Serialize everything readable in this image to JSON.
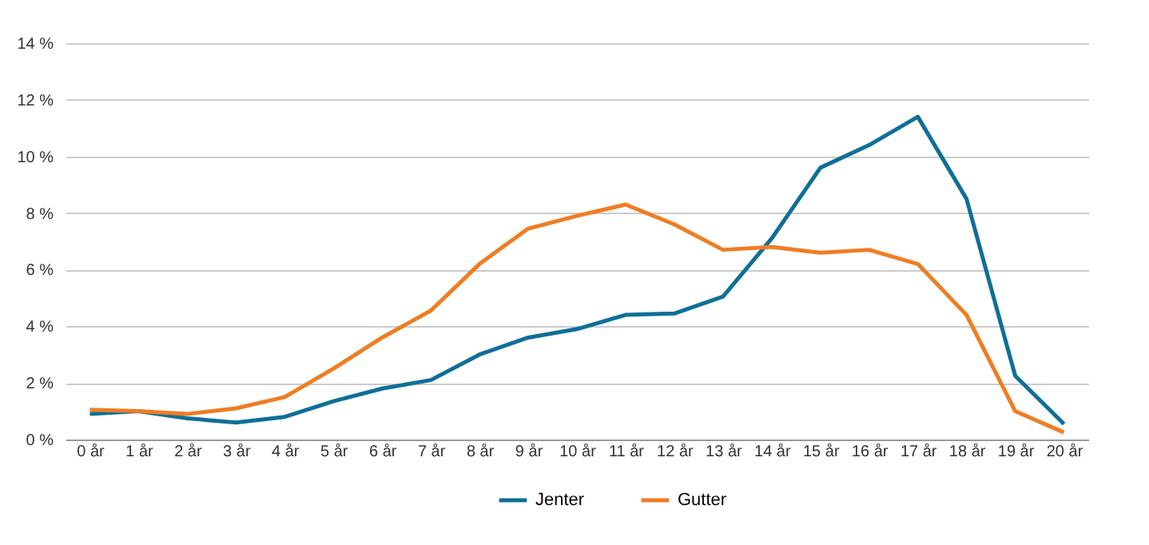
{
  "chart_data": {
    "type": "line",
    "categories": [
      "0 år",
      "1 år",
      "2 år",
      "3 år",
      "4 år",
      "5 år",
      "6 år",
      "7 år",
      "8 år",
      "9 år",
      "10 år",
      "11 år",
      "12 år",
      "13 år",
      "14 år",
      "15 år",
      "16 år",
      "17 år",
      "18 år",
      "19 år",
      "20 år"
    ],
    "series": [
      {
        "name": "Jenter",
        "color": "#0f6f98",
        "values": [
          0.9,
          1.0,
          0.75,
          0.6,
          0.8,
          1.35,
          1.8,
          2.1,
          3.0,
          3.6,
          3.9,
          4.4,
          4.45,
          5.05,
          7.1,
          9.6,
          10.4,
          11.4,
          8.5,
          2.25,
          0.55
        ]
      },
      {
        "name": "Gutter",
        "color": "#ef7d23",
        "values": [
          1.05,
          1.0,
          0.9,
          1.1,
          1.5,
          2.5,
          3.6,
          4.55,
          6.2,
          7.45,
          7.9,
          8.3,
          7.6,
          6.7,
          6.8,
          6.6,
          6.7,
          6.2,
          4.4,
          1.0,
          0.25
        ]
      }
    ],
    "ylim": [
      0,
      14
    ],
    "yticks": [
      {
        "value": 0,
        "label": "0 %"
      },
      {
        "value": 2,
        "label": "2 %"
      },
      {
        "value": 4,
        "label": "4 %"
      },
      {
        "value": 6,
        "label": "6 %"
      },
      {
        "value": 8,
        "label": "8 %"
      },
      {
        "value": 10,
        "label": "10 %"
      },
      {
        "value": 12,
        "label": "12 %"
      },
      {
        "value": 14,
        "label": "14 %"
      }
    ],
    "grid": "y",
    "legend": "bottom",
    "marker": "none",
    "line_style": "solid"
  }
}
